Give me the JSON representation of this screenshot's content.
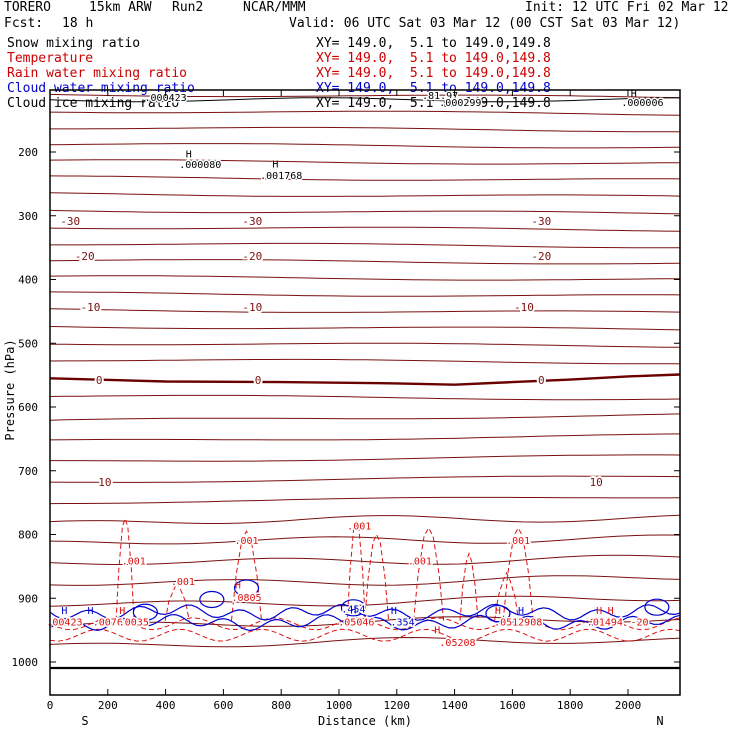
{
  "header": {
    "model": "TORERO",
    "resolution": "15km ARW",
    "run": "Run2",
    "center": "NCAR/MMM",
    "init": "Init: 12 UTC Fri 02 Mar 12",
    "fcst_label": "Fcst:",
    "fcst_value": "18 h",
    "valid": "Valid: 06 UTC Sat 03 Mar 12 (00 CST Sat 03 Mar 12)"
  },
  "fields": [
    {
      "name": "Snow mixing ratio",
      "xy": "XY= 149.0,  5.1 to 149.0,149.8",
      "color": "#000000"
    },
    {
      "name": "Temperature",
      "xy": "XY= 149.0,  5.1 to 149.0,149.8",
      "color": "#cc0000"
    },
    {
      "name": "Rain water mixing ratio",
      "xy": "XY= 149.0,  5.1 to 149.0,149.8",
      "color": "#cc0000"
    },
    {
      "name": "Cloud water mixing ratio",
      "xy": "XY= 149.0,  5.1 to 149.0,149.8",
      "color": "#0000cc"
    },
    {
      "name": "Cloud ice mixing ratio",
      "xy": "XY= 149.0,  5.1 to 149.0,149.8",
      "color": "#000000"
    }
  ],
  "colors": {
    "temperature": "#7a1010",
    "temperature_zero": "#6a0000",
    "rain": "#dd1111",
    "cloud_water": "#0000cc",
    "snow": "#000000",
    "frame": "#000000"
  },
  "chart_data": {
    "type": "cross-section contour",
    "xlabel": "Distance (km)",
    "ylabel": "Pressure (hPa)",
    "x_ticks": [
      0,
      200,
      400,
      600,
      800,
      1000,
      1200,
      1400,
      1600,
      1800,
      2000
    ],
    "x_range": [
      0,
      2180
    ],
    "y_ticks": [
      200,
      300,
      400,
      500,
      600,
      700,
      800,
      900,
      1000
    ],
    "y_range": [
      1010,
      100
    ],
    "x_end_labels": {
      "left": "S",
      "right": "N"
    },
    "temperature_contour_labels": [
      {
        "value": "-30",
        "x_km": [
          70,
          700,
          1700
        ],
        "p_hpa": 308
      },
      {
        "value": "-20",
        "x_km": [
          120,
          700,
          1700
        ],
        "p_hpa": 363
      },
      {
        "value": "-10",
        "x_km": [
          140,
          700,
          1640
        ],
        "p_hpa": 443
      },
      {
        "value": "0",
        "x_km": [
          170,
          720,
          1700
        ],
        "p_hpa": 558
      },
      {
        "value": "10",
        "x_km": [
          190,
          1890
        ],
        "p_hpa": 718
      }
    ],
    "temperature_zero_line": {
      "x_km": [
        0,
        400,
        800,
        1200,
        1400,
        1600,
        1800,
        2000,
        2180
      ],
      "p_hpa": [
        555,
        560,
        561,
        563,
        565,
        561,
        557,
        552,
        549
      ]
    },
    "rain_labels": [
      {
        "text": ".001",
        "x_km": 290,
        "p_hpa": 847
      },
      {
        "text": ".001",
        "x_km": 460,
        "p_hpa": 879
      },
      {
        "text": ".001",
        "x_km": 680,
        "p_hpa": 815
      },
      {
        "text": ".001",
        "x_km": 1070,
        "p_hpa": 792
      },
      {
        "text": ".001",
        "x_km": 1280,
        "p_hpa": 847
      },
      {
        "text": ".001",
        "x_km": 1620,
        "p_hpa": 815
      },
      {
        "text": ".0805",
        "x_km": 680,
        "p_hpa": 904
      },
      {
        "text": ".05046",
        "x_km": 1060,
        "p_hpa": 943
      },
      {
        "text": ".05208",
        "x_km": 1410,
        "p_hpa": 975
      },
      {
        "text": ".0512908",
        "x_km": 1620,
        "p_hpa": 943
      },
      {
        "text": ".00423",
        "x_km": 50,
        "p_hpa": 943
      },
      {
        "text": ".0076",
        "x_km": 200,
        "p_hpa": 943
      },
      {
        "text": ".0035",
        "x_km": 290,
        "p_hpa": 943
      },
      {
        "text": ".01494",
        "x_km": 1920,
        "p_hpa": 943
      },
      {
        "text": "-20",
        "x_km": 2040,
        "p_hpa": 943
      }
    ],
    "rain_peaks_km": [
      260,
      440,
      680,
      1060,
      1130,
      1310,
      1450,
      1580,
      1620
    ],
    "cloud_water_labels": [
      {
        "text": ".454",
        "x_km": 1050,
        "p_hpa": 922
      },
      {
        "text": ".354",
        "x_km": 1220,
        "p_hpa": 943
      }
    ],
    "snow_labels": [
      {
        "text": ".000423",
        "x_km": 400,
        "p_hpa": 120
      },
      {
        "text": ".000080",
        "x_km": 520,
        "p_hpa": 225
      },
      {
        "text": ".001768",
        "x_km": 800,
        "p_hpa": 242
      },
      {
        "text": ".000006",
        "x_km": 2050,
        "p_hpa": 128
      },
      {
        "text": ".81.97",
        "x_km": 1350,
        "p_hpa": 117
      },
      {
        "text": ".000299",
        "x_km": 1420,
        "p_hpa": 128
      }
    ],
    "high_markers": [
      {
        "color": "black",
        "x_km": 480,
        "p_hpa": 209
      },
      {
        "color": "black",
        "x_km": 780,
        "p_hpa": 224
      },
      {
        "color": "black",
        "x_km": 2020,
        "p_hpa": 114
      },
      {
        "color": "blue",
        "x_km": 50,
        "p_hpa": 925
      },
      {
        "color": "blue",
        "x_km": 140,
        "p_hpa": 925
      },
      {
        "color": "blue",
        "x_km": 1050,
        "p_hpa": 924
      },
      {
        "color": "blue",
        "x_km": 1190,
        "p_hpa": 925
      },
      {
        "color": "blue",
        "x_km": 1630,
        "p_hpa": 925
      },
      {
        "color": "red",
        "x_km": 250,
        "p_hpa": 925
      },
      {
        "color": "red",
        "x_km": 650,
        "p_hpa": 885
      },
      {
        "color": "red",
        "x_km": 1340,
        "p_hpa": 955
      },
      {
        "color": "red",
        "x_km": 1550,
        "p_hpa": 925
      },
      {
        "color": "red",
        "x_km": 1900,
        "p_hpa": 925
      },
      {
        "color": "red",
        "x_km": 1940,
        "p_hpa": 925
      }
    ],
    "grid": false
  }
}
